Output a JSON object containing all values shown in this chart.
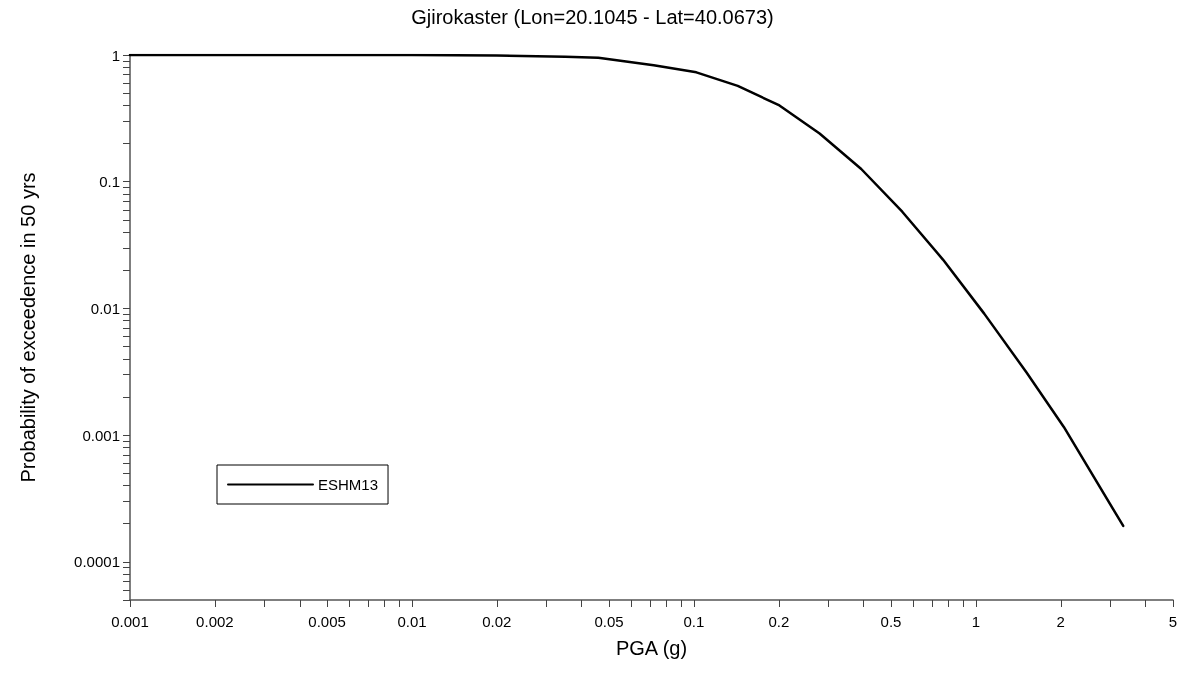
{
  "chart_data": {
    "type": "line",
    "title": "Gjirokaster (Lon=20.1045 - Lat=40.0673)",
    "xlabel": "PGA (g)",
    "ylabel": "Probability of exceedence in 50 yrs",
    "x": [
      0.001,
      0.002,
      0.005,
      0.01,
      0.02,
      0.035,
      0.0458,
      0.072,
      0.102,
      0.143,
      0.201,
      0.279,
      0.392,
      0.548,
      0.764,
      1.07,
      1.51,
      2.05,
      3.33
    ],
    "series": [
      {
        "name": "ESHM13",
        "color": "#000000",
        "values": [
          1,
          1,
          1,
          0.999,
          0.99,
          0.97,
          0.95,
          0.83,
          0.73,
          0.57,
          0.4,
          0.24,
          0.126,
          0.058,
          0.0243,
          0.0091,
          0.00313,
          0.00116,
          0.000192
        ]
      }
    ],
    "log": "xy",
    "xlim": [
      0.001,
      5
    ],
    "ylim": [
      5e-05,
      1
    ],
    "xticks": [
      0.001,
      0.002,
      {
        "value": 0.003,
        "label": null
      },
      {
        "value": 0.004,
        "label": null
      },
      0.005,
      {
        "value": 0.006,
        "label": null
      },
      {
        "value": 0.007,
        "label": null
      },
      {
        "value": 0.008,
        "label": null
      },
      {
        "value": 0.009,
        "label": null
      },
      0.01,
      0.02,
      {
        "value": 0.03,
        "label": null
      },
      {
        "value": 0.04,
        "label": null
      },
      0.05,
      {
        "value": 0.06,
        "label": null
      },
      {
        "value": 0.07,
        "label": null
      },
      {
        "value": 0.08,
        "label": null
      },
      {
        "value": 0.09,
        "label": null
      },
      0.1,
      0.2,
      {
        "value": 0.3,
        "label": null
      },
      {
        "value": 0.4,
        "label": null
      },
      0.5,
      {
        "value": 0.6,
        "label": null
      },
      {
        "value": 0.7,
        "label": null
      },
      {
        "value": 0.8,
        "label": null
      },
      {
        "value": 0.9,
        "label": null
      },
      1,
      2,
      {
        "value": 3,
        "label": null
      },
      {
        "value": 4,
        "label": null
      },
      5
    ],
    "yticks": [
      {
        "value": 5e-05,
        "label": null
      },
      {
        "value": 6e-05,
        "label": null
      },
      {
        "value": 7e-05,
        "label": null
      },
      {
        "value": 8e-05,
        "label": null
      },
      {
        "value": 9e-05,
        "label": null
      },
      0.0001,
      {
        "value": 0.0002,
        "label": null
      },
      {
        "value": 0.0003,
        "label": null
      },
      {
        "value": 0.0004,
        "label": null
      },
      {
        "value": 0.0005,
        "label": null
      },
      {
        "value": 0.0006,
        "label": null
      },
      {
        "value": 0.0007,
        "label": null
      },
      {
        "value": 0.0008,
        "label": null
      },
      {
        "value": 0.0009,
        "label": null
      },
      0.001,
      {
        "value": 0.002,
        "label": null
      },
      {
        "value": 0.003,
        "label": null
      },
      {
        "value": 0.004,
        "label": null
      },
      {
        "value": 0.005,
        "label": null
      },
      {
        "value": 0.006,
        "label": null
      },
      {
        "value": 0.007,
        "label": null
      },
      {
        "value": 0.008,
        "label": null
      },
      {
        "value": 0.009,
        "label": null
      },
      0.01,
      {
        "value": 0.02,
        "label": null
      },
      {
        "value": 0.03,
        "label": null
      },
      {
        "value": 0.04,
        "label": null
      },
      {
        "value": 0.05,
        "label": null
      },
      {
        "value": 0.06,
        "label": null
      },
      {
        "value": 0.07,
        "label": null
      },
      {
        "value": 0.08,
        "label": null
      },
      {
        "value": 0.09,
        "label": null
      },
      0.1,
      {
        "value": 0.2,
        "label": null
      },
      {
        "value": 0.3,
        "label": null
      },
      {
        "value": 0.4,
        "label": null
      },
      {
        "value": 0.5,
        "label": null
      },
      {
        "value": 0.6,
        "label": null
      },
      {
        "value": 0.7,
        "label": null
      },
      {
        "value": 0.8,
        "label": null
      },
      {
        "value": 0.9,
        "label": null
      },
      1
    ],
    "grid": false,
    "legend": "bottom left",
    "marker": "none",
    "line_style": "solid"
  }
}
